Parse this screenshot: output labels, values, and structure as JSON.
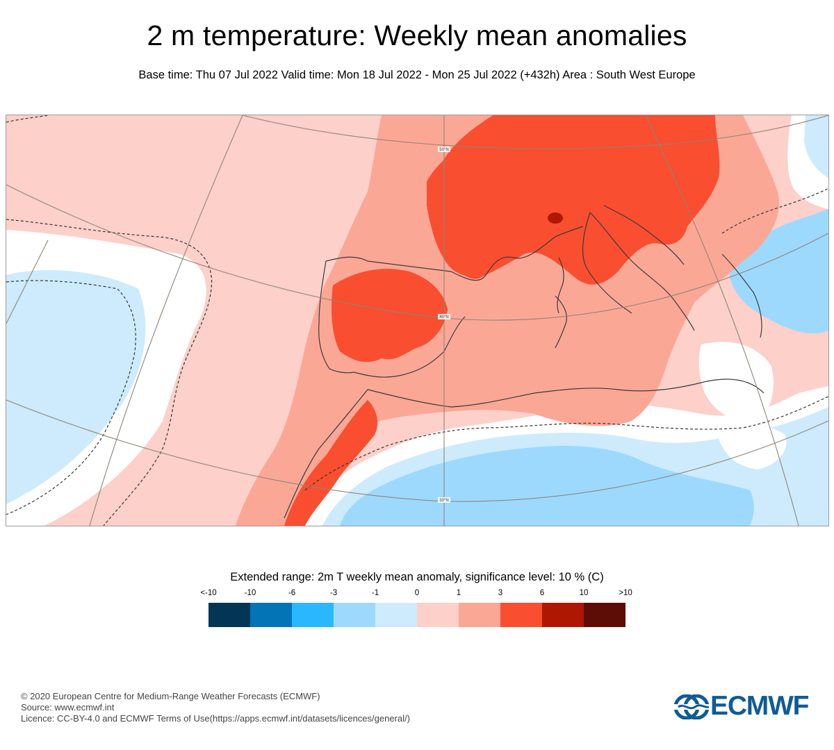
{
  "title": "2 m temperature: Weekly mean anomalies",
  "subtitle": "Base time: Thu 07 Jul 2022 Valid time: Mon 18 Jul 2022 - Mon 25 Jul 2022 (+432h) Area : South West Europe",
  "map": {
    "graticule_labels": [
      "50°N",
      "40°N",
      "30°N"
    ],
    "area": "South West Europe"
  },
  "legend": {
    "title": "Extended range: 2m T weekly mean anomaly, significance level: 10 % (C)",
    "ticks": [
      "<-10",
      "-10",
      "-6",
      "-3",
      "-1",
      "0",
      "1",
      "3",
      "6",
      "10",
      ">10"
    ],
    "colors": [
      "#033654",
      "#0374b6",
      "#2bb7fd",
      "#9dd9fd",
      "#cdebfc",
      "#ffffff",
      "#fdd0ca",
      "#fba796",
      "#f94e30",
      "#ae1702",
      "#5d0d06"
    ]
  },
  "footer": {
    "copyright": "© 2020 European Centre for Medium-Range Weather Forecasts (ECMWF)",
    "source": "Source: www.ecmwf.int",
    "license": "Licence: CC-BY-4.0 and ECMWF Terms of Use(https://apps.ecmwf.int/datasets/licences/general/)"
  },
  "logo": {
    "text": "ECMWF",
    "color": "#0f5c95"
  }
}
